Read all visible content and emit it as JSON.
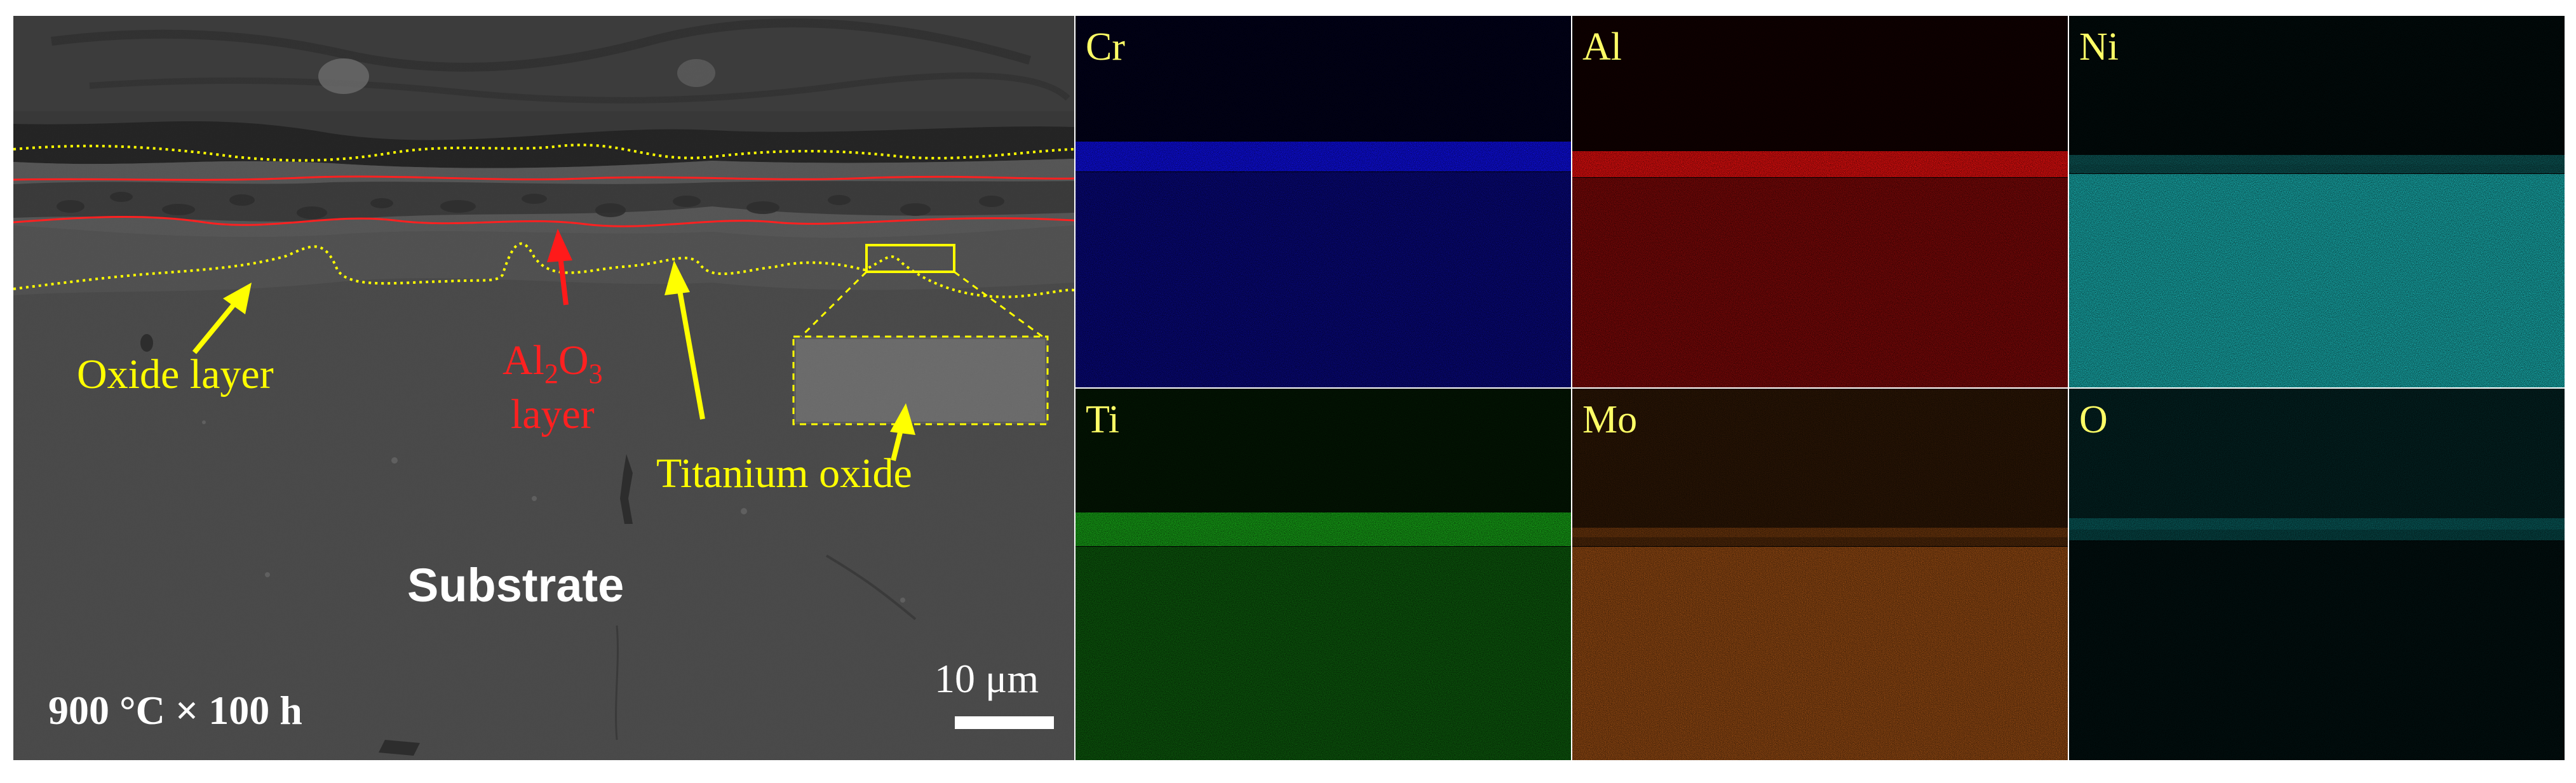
{
  "panel": {
    "condition": "900 °C × 100 h",
    "scale_label": "10 μm",
    "substrate_label": "Substrate",
    "oxide_layer_label": "Oxide layer",
    "al2o3": {
      "base1": "Al",
      "sub1": "2",
      "base2": "O",
      "sub2": "3",
      "line2": "layer"
    },
    "titanium_oxide_label": "Titanium oxide"
  },
  "maps": [
    {
      "element": "Cr",
      "color": "#1010ff"
    },
    {
      "element": "Al",
      "color": "#ff1010"
    },
    {
      "element": "Ni",
      "color": "#20e0e0"
    },
    {
      "element": "Ti",
      "color": "#20e020"
    },
    {
      "element": "Mo",
      "color": "#ff8020"
    },
    {
      "element": "O",
      "color": "#10b0b0"
    }
  ],
  "colors": {
    "annotation_yellow": "#ffff00",
    "annotation_red": "#ff2020",
    "label_yellow": "#ffff66"
  }
}
